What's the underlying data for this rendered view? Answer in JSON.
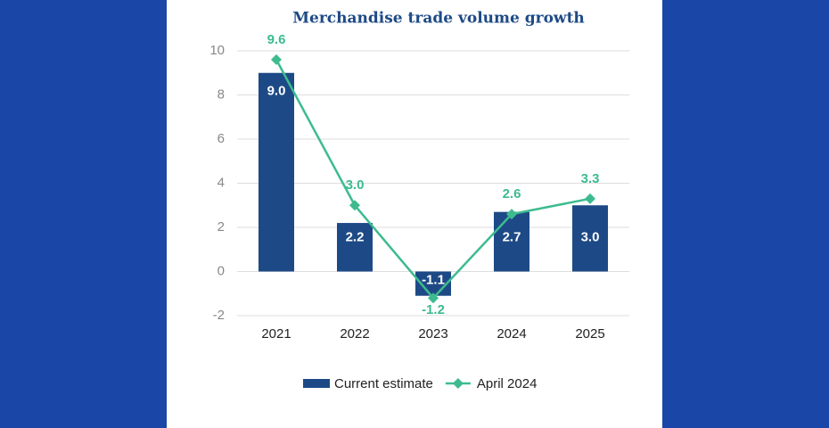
{
  "chart_data": {
    "type": "bar",
    "title": "Merchandise trade volume growth",
    "categories": [
      "2021",
      "2022",
      "2023",
      "2024",
      "2025"
    ],
    "series": [
      {
        "name": "Current estimate",
        "type": "bar",
        "color": "#1d4a86",
        "values": [
          9.0,
          2.2,
          -1.1,
          2.7,
          3.0
        ],
        "value_labels": [
          "9.0",
          "2.2",
          "-1.1",
          "2.7",
          "3.0"
        ]
      },
      {
        "name": "April 2024",
        "type": "line",
        "color": "#3dbb8f",
        "values": [
          9.6,
          3.0,
          -1.2,
          2.6,
          3.3
        ],
        "value_labels": [
          "9.6",
          "3.0",
          "-1.2",
          "2.6",
          "3.3"
        ]
      }
    ],
    "ylim": [
      -2,
      10
    ],
    "yticks": [
      -2,
      0,
      2,
      4,
      6,
      8,
      10
    ],
    "grid": true,
    "legend": "bottom"
  }
}
